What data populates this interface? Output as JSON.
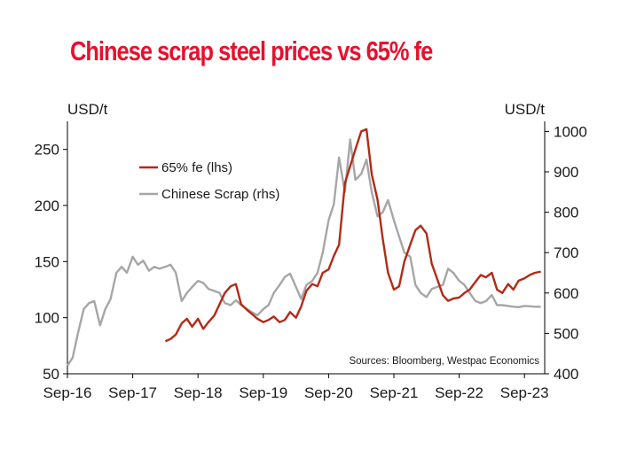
{
  "chart_data": {
    "type": "line",
    "title": "Chinese scrap steel prices vs 65% fe",
    "left_unit": "USD/t",
    "right_unit": "USD/t",
    "source": "Sources: Bloomberg, Westpac Economics",
    "legend_position": "top-left",
    "grid": false,
    "colors": {
      "title": "#e8112d",
      "fe": "#b22a16",
      "scrap": "#a6a6a6",
      "axis": "#000000"
    },
    "x_ticks": [
      "Sep-16",
      "Sep-17",
      "Sep-18",
      "Sep-19",
      "Sep-20",
      "Sep-21",
      "Sep-22",
      "Sep-23"
    ],
    "x_range": [
      2016.67,
      2023.98
    ],
    "y_left": {
      "range": [
        50,
        275
      ],
      "ticks": [
        "50",
        "100",
        "150",
        "200",
        "250"
      ]
    },
    "y_right": {
      "range": [
        400,
        1025
      ],
      "ticks": [
        "400",
        "500",
        "600",
        "700",
        "800",
        "900",
        "1000"
      ]
    },
    "series": [
      {
        "name": "65% fe (lhs)",
        "axis": "left",
        "color": "#b22a16",
        "x": [
          2018.17,
          2018.25,
          2018.33,
          2018.42,
          2018.5,
          2018.58,
          2018.67,
          2018.75,
          2018.83,
          2018.92,
          2019.0,
          2019.08,
          2019.17,
          2019.25,
          2019.33,
          2019.42,
          2019.5,
          2019.58,
          2019.67,
          2019.75,
          2019.83,
          2019.92,
          2020.0,
          2020.08,
          2020.17,
          2020.25,
          2020.33,
          2020.42,
          2020.5,
          2020.58,
          2020.67,
          2020.75,
          2020.83,
          2020.92,
          2021.0,
          2021.08,
          2021.17,
          2021.25,
          2021.33,
          2021.42,
          2021.5,
          2021.58,
          2021.67,
          2021.75,
          2021.83,
          2021.92,
          2022.0,
          2022.08,
          2022.17,
          2022.25,
          2022.33,
          2022.42,
          2022.5,
          2022.58,
          2022.67,
          2022.75,
          2022.83,
          2022.92,
          2023.0,
          2023.08,
          2023.17,
          2023.25,
          2023.33,
          2023.42,
          2023.5,
          2023.58,
          2023.67,
          2023.75,
          2023.83,
          2023.92
        ],
        "values": [
          79,
          81,
          85,
          95,
          99,
          92,
          99,
          90,
          96,
          102,
          112,
          122,
          128,
          130,
          112,
          107,
          103,
          99,
          96,
          98,
          101,
          96,
          98,
          105,
          100,
          110,
          124,
          130,
          128,
          140,
          143,
          155,
          165,
          220,
          235,
          250,
          266,
          268,
          228,
          205,
          170,
          140,
          125,
          128,
          150,
          165,
          178,
          182,
          175,
          148,
          135,
          120,
          115,
          117,
          118,
          122,
          125,
          132,
          138,
          136,
          140,
          125,
          122,
          130,
          125,
          133,
          135,
          138,
          140,
          141
        ]
      },
      {
        "name": "Chinese Scrap (rhs)",
        "axis": "right",
        "color": "#a6a6a6",
        "x": [
          2016.67,
          2016.75,
          2016.83,
          2016.92,
          2017.0,
          2017.08,
          2017.17,
          2017.25,
          2017.33,
          2017.42,
          2017.5,
          2017.58,
          2017.67,
          2017.75,
          2017.83,
          2017.92,
          2018.0,
          2018.08,
          2018.17,
          2018.25,
          2018.33,
          2018.42,
          2018.5,
          2018.58,
          2018.67,
          2018.75,
          2018.83,
          2018.92,
          2019.0,
          2019.08,
          2019.17,
          2019.25,
          2019.33,
          2019.42,
          2019.5,
          2019.58,
          2019.67,
          2019.75,
          2019.83,
          2019.92,
          2020.0,
          2020.08,
          2020.17,
          2020.25,
          2020.33,
          2020.42,
          2020.5,
          2020.58,
          2020.67,
          2020.75,
          2020.83,
          2020.92,
          2021.0,
          2021.08,
          2021.17,
          2021.25,
          2021.33,
          2021.42,
          2021.5,
          2021.58,
          2021.67,
          2021.75,
          2021.83,
          2021.92,
          2022.0,
          2022.08,
          2022.17,
          2022.25,
          2022.33,
          2022.42,
          2022.5,
          2022.58,
          2022.67,
          2022.75,
          2022.83,
          2022.92,
          2023.0,
          2023.08,
          2023.17,
          2023.25,
          2023.33,
          2023.42,
          2023.5,
          2023.58,
          2023.67,
          2023.75,
          2023.83,
          2023.92
        ],
        "values": [
          420,
          440,
          500,
          560,
          575,
          580,
          520,
          560,
          585,
          650,
          665,
          650,
          690,
          670,
          680,
          655,
          665,
          660,
          665,
          670,
          650,
          580,
          600,
          615,
          630,
          625,
          610,
          605,
          600,
          575,
          570,
          582,
          570,
          560,
          552,
          545,
          560,
          570,
          600,
          620,
          640,
          648,
          615,
          585,
          620,
          630,
          650,
          700,
          780,
          820,
          935,
          850,
          980,
          880,
          895,
          930,
          850,
          790,
          800,
          830,
          780,
          740,
          700,
          690,
          620,
          600,
          590,
          610,
          615,
          620,
          660,
          650,
          630,
          620,
          600,
          580,
          575,
          580,
          595,
          570,
          570,
          568,
          566,
          565,
          568,
          567,
          566,
          566
        ]
      }
    ]
  }
}
